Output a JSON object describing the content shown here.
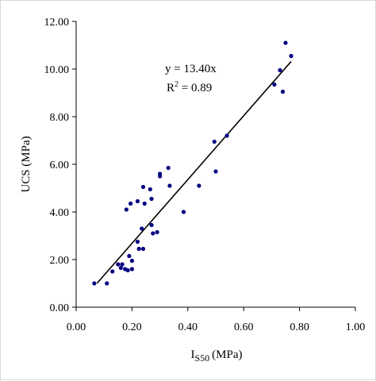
{
  "chart_data": {
    "type": "scatter",
    "xlabel": {
      "main": "I",
      "subscript": "S50",
      "unit": "(MPa)"
    },
    "ylabel": "UCS (MPa)",
    "xlim": [
      0,
      1
    ],
    "ylim": [
      0,
      12
    ],
    "x_ticks": [
      "0.00",
      "0.20",
      "0.40",
      "0.60",
      "0.80",
      "1.00"
    ],
    "y_ticks": [
      "0.00",
      "2.00",
      "4.00",
      "6.00",
      "8.00",
      "10.00",
      "12.00"
    ],
    "grid": false,
    "legend": "none",
    "marker_color": "#000080",
    "line_color": "#000000",
    "series": [
      {
        "points": [
          [
            0.065,
            1.0
          ],
          [
            0.11,
            1.0
          ],
          [
            0.13,
            1.5
          ],
          [
            0.15,
            1.8
          ],
          [
            0.16,
            1.65
          ],
          [
            0.165,
            1.8
          ],
          [
            0.175,
            1.6
          ],
          [
            0.18,
            4.1
          ],
          [
            0.185,
            1.55
          ],
          [
            0.19,
            2.15
          ],
          [
            0.195,
            4.35
          ],
          [
            0.2,
            1.95
          ],
          [
            0.2,
            1.6
          ],
          [
            0.22,
            4.45
          ],
          [
            0.22,
            2.75
          ],
          [
            0.225,
            2.45
          ],
          [
            0.235,
            3.3
          ],
          [
            0.24,
            2.45
          ],
          [
            0.24,
            5.05
          ],
          [
            0.245,
            4.35
          ],
          [
            0.265,
            4.95
          ],
          [
            0.27,
            4.55
          ],
          [
            0.27,
            3.45
          ],
          [
            0.275,
            3.1
          ],
          [
            0.29,
            3.15
          ],
          [
            0.3,
            5.6
          ],
          [
            0.3,
            5.5
          ],
          [
            0.33,
            5.85
          ],
          [
            0.335,
            5.1
          ],
          [
            0.385,
            4.0
          ],
          [
            0.44,
            5.1
          ],
          [
            0.495,
            6.95
          ],
          [
            0.5,
            5.7
          ],
          [
            0.54,
            7.2
          ],
          [
            0.71,
            9.35
          ],
          [
            0.73,
            9.95
          ],
          [
            0.74,
            9.05
          ],
          [
            0.75,
            11.1
          ],
          [
            0.77,
            10.55
          ]
        ]
      }
    ],
    "trendline": {
      "slope": 13.4,
      "x_range": [
        0.075,
        0.77
      ]
    },
    "annotations": {
      "equation": "y = 13.40x",
      "r2_prefix": "R",
      "r2_exponent": "2",
      "r2_value": " = 0.89"
    }
  }
}
